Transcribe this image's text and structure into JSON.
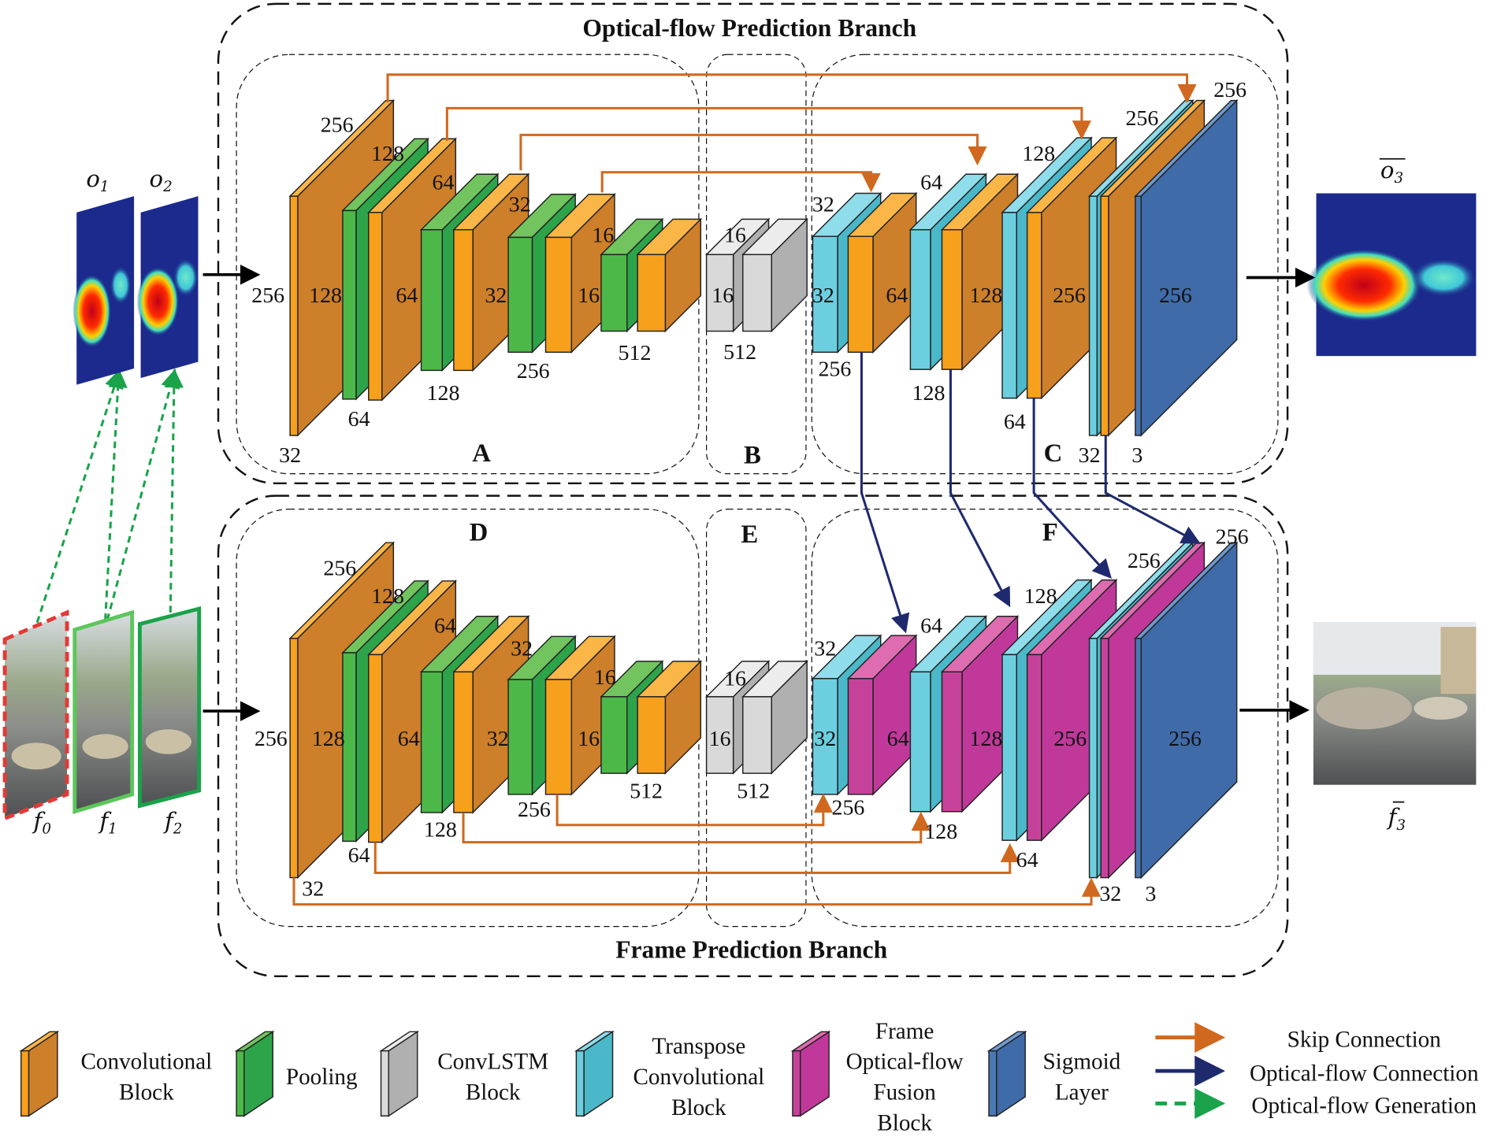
{
  "titles": {
    "top_branch": "Optical-flow Prediction Branch",
    "bottom_branch": "Frame Prediction Branch"
  },
  "section_letters": [
    "A",
    "B",
    "C",
    "D",
    "E",
    "F"
  ],
  "inputs": {
    "flow_labels": [
      {
        "base": "o",
        "sub": "1"
      },
      {
        "base": "o",
        "sub": "2"
      }
    ],
    "frame_labels": [
      {
        "base": "f",
        "sub": "0"
      },
      {
        "base": "f",
        "sub": "1"
      },
      {
        "base": "f",
        "sub": "2"
      }
    ]
  },
  "outputs": {
    "flow_label": {
      "base": "o",
      "sub": "3"
    },
    "frame_label": {
      "base": "f",
      "sub": "3"
    }
  },
  "dimension_labels": {
    "top_branch": [
      "256",
      "128",
      "64",
      "32",
      "16",
      "16",
      "32",
      "64",
      "128",
      "256",
      "256",
      "256",
      "128",
      "64",
      "32",
      "16",
      "16",
      "32",
      "64",
      "128",
      "256",
      "256",
      "32",
      "64",
      "128",
      "256",
      "512",
      "512",
      "256",
      "128",
      "64",
      "32",
      "3"
    ],
    "bottom_branch": [
      "256",
      "128",
      "64",
      "32",
      "16",
      "16",
      "32",
      "64",
      "128",
      "256",
      "256",
      "256",
      "128",
      "64",
      "32",
      "16",
      "16",
      "32",
      "64",
      "128",
      "256",
      "256",
      "32",
      "64",
      "128",
      "256",
      "512",
      "512",
      "256",
      "128",
      "64",
      "32",
      "3"
    ]
  },
  "legend": {
    "blocks": [
      {
        "lines": [
          "Convolutional",
          "Block"
        ],
        "color": "#f7a01c"
      },
      {
        "lines": [
          "Pooling"
        ],
        "color": "#4cb848"
      },
      {
        "lines": [
          "ConvLSTM",
          "Block"
        ],
        "color": "#d9d9d9"
      },
      {
        "lines": [
          "Transpose",
          "Convolutional",
          "Block"
        ],
        "color": "#6ccfe0"
      },
      {
        "lines": [
          "Frame",
          "Optical-flow",
          "Fusion",
          "Block"
        ],
        "color": "#c6429a"
      },
      {
        "lines": [
          "Sigmoid",
          "Layer"
        ],
        "color": "#4a78b5"
      }
    ],
    "connections": [
      {
        "label": "Skip Connection",
        "color": "#d0691f"
      },
      {
        "label": "Optical-flow  Connection",
        "color": "#1f2a6e"
      },
      {
        "label": "Optical-flow  Generation",
        "color": "#1aa34a"
      }
    ]
  }
}
